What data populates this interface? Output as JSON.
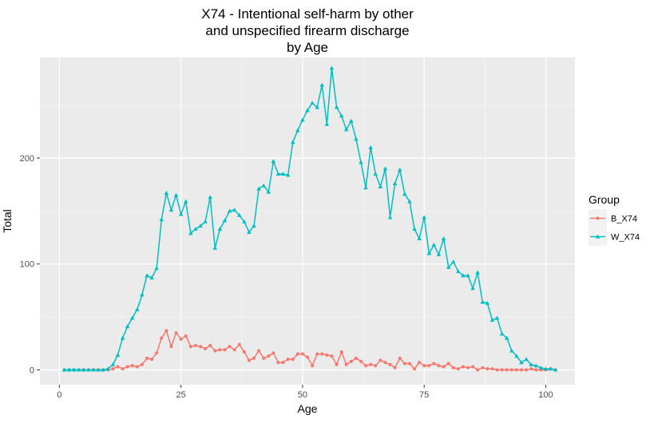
{
  "chart_data": {
    "type": "line",
    "title_lines": [
      "X74 - Intentional self-harm by other",
      "and unspecified firearm discharge",
      "by Age"
    ],
    "xlabel": "Age",
    "ylabel": "Total",
    "xlim": [
      -4,
      106
    ],
    "ylim": [
      -14,
      295
    ],
    "x_ticks": [
      0,
      25,
      50,
      75,
      100
    ],
    "y_ticks": [
      0,
      100,
      200
    ],
    "grid": true,
    "legend": {
      "title": "Group",
      "placement": "right"
    },
    "series": [
      {
        "name": "B_X74",
        "color": "#F8766D",
        "marker": "circle",
        "x": [
          1,
          2,
          3,
          4,
          5,
          6,
          7,
          8,
          9,
          10,
          11,
          12,
          13,
          14,
          15,
          16,
          17,
          18,
          19,
          20,
          21,
          22,
          23,
          24,
          25,
          26,
          27,
          28,
          29,
          30,
          31,
          32,
          33,
          34,
          35,
          36,
          37,
          38,
          39,
          40,
          41,
          42,
          43,
          44,
          45,
          46,
          47,
          48,
          49,
          50,
          51,
          52,
          53,
          54,
          55,
          56,
          57,
          58,
          59,
          60,
          61,
          62,
          63,
          64,
          65,
          66,
          67,
          68,
          69,
          70,
          71,
          72,
          73,
          74,
          75,
          76,
          77,
          78,
          79,
          80,
          81,
          82,
          83,
          84,
          85,
          86,
          87,
          88,
          89,
          90,
          91,
          92,
          93,
          94,
          95,
          96,
          97,
          98,
          99,
          100,
          101,
          102
        ],
        "values": [
          0,
          0,
          0,
          0,
          0,
          0,
          0,
          0,
          0,
          0,
          1,
          3,
          1,
          3,
          4,
          3,
          5,
          11,
          10,
          16,
          30,
          37,
          22,
          35,
          29,
          32,
          22,
          23,
          22,
          20,
          23,
          18,
          19,
          19,
          22,
          19,
          24,
          17,
          9,
          11,
          18,
          11,
          13,
          16,
          7,
          7,
          10,
          10,
          15,
          15,
          12,
          4,
          15,
          15,
          14,
          13,
          5,
          17,
          5,
          8,
          11,
          8,
          4,
          5,
          4,
          9,
          7,
          5,
          2,
          11,
          6,
          6,
          1,
          7,
          4,
          4,
          6,
          4,
          3,
          6,
          2,
          1,
          3,
          2,
          3,
          0,
          2,
          1,
          1,
          0,
          0,
          0,
          0,
          0,
          0,
          0,
          1,
          0,
          0,
          0,
          1,
          0
        ]
      },
      {
        "name": "W_X74",
        "color": "#00BFC4",
        "marker": "triangle",
        "x": [
          1,
          2,
          3,
          4,
          5,
          6,
          7,
          8,
          9,
          10,
          11,
          12,
          13,
          14,
          15,
          16,
          17,
          18,
          19,
          20,
          21,
          22,
          23,
          24,
          25,
          26,
          27,
          28,
          29,
          30,
          31,
          32,
          33,
          34,
          35,
          36,
          37,
          38,
          39,
          40,
          41,
          42,
          43,
          44,
          45,
          46,
          47,
          48,
          49,
          50,
          51,
          52,
          53,
          54,
          55,
          56,
          57,
          58,
          59,
          60,
          61,
          62,
          63,
          64,
          65,
          66,
          67,
          68,
          69,
          70,
          71,
          72,
          73,
          74,
          75,
          76,
          77,
          78,
          79,
          80,
          81,
          82,
          83,
          84,
          85,
          86,
          87,
          88,
          89,
          90,
          91,
          92,
          93,
          94,
          95,
          96,
          97,
          98,
          99,
          100,
          101,
          102
        ],
        "values": [
          0,
          0,
          0,
          0,
          0,
          0,
          0,
          0,
          0,
          1,
          5,
          14,
          30,
          41,
          49,
          57,
          71,
          89,
          87,
          96,
          142,
          167,
          151,
          165,
          147,
          159,
          129,
          133,
          136,
          140,
          163,
          115,
          133,
          141,
          150,
          151,
          146,
          140,
          130,
          136,
          171,
          174,
          168,
          197,
          185,
          185,
          184,
          215,
          226,
          236,
          245,
          252,
          248,
          269,
          232,
          285,
          248,
          240,
          227,
          235,
          218,
          196,
          172,
          210,
          185,
          173,
          190,
          144,
          176,
          189,
          166,
          159,
          133,
          124,
          144,
          110,
          118,
          109,
          124,
          97,
          102,
          93,
          89,
          89,
          77,
          92,
          64,
          63,
          47,
          49,
          34,
          30,
          18,
          13,
          7,
          10,
          5,
          4,
          2,
          1,
          1,
          0
        ]
      }
    ]
  }
}
